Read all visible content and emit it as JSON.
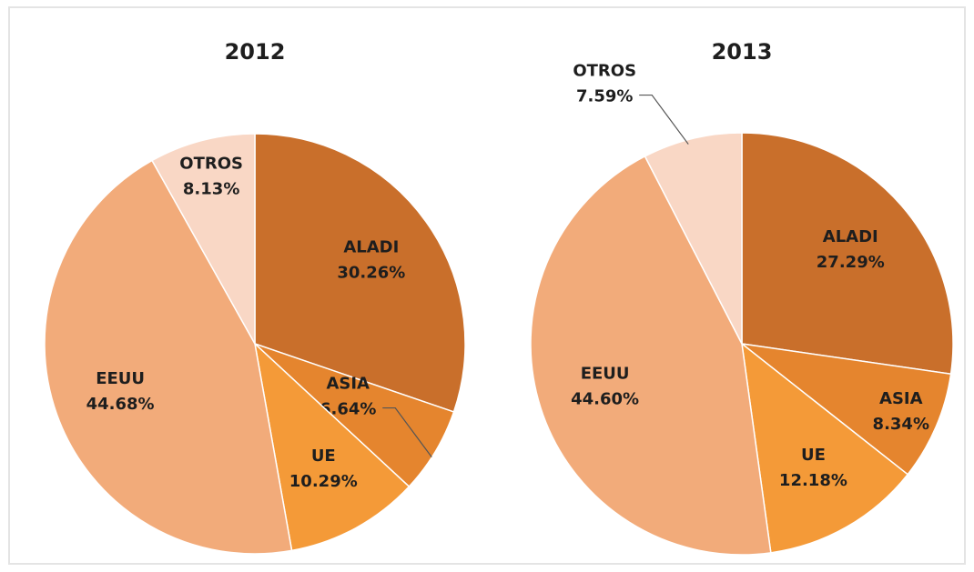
{
  "chart_data": [
    {
      "type": "pie",
      "title": "2012",
      "categories": [
        "ALADI",
        "ASIA",
        "UE",
        "EEUU",
        "OTROS"
      ],
      "values": [
        30.26,
        6.64,
        10.29,
        44.68,
        8.13
      ],
      "value_labels": [
        "30.26%",
        "6.64%",
        "10.29%",
        "44.68%",
        "8.13%"
      ],
      "colors": [
        "#c96f2b",
        "#e5852e",
        "#f49a38",
        "#f2ab7a",
        "#f9d7c5"
      ]
    },
    {
      "type": "pie",
      "title": "2013",
      "categories": [
        "ALADI",
        "ASIA",
        "UE",
        "EEUU",
        "OTROS"
      ],
      "values": [
        27.29,
        8.34,
        12.18,
        44.6,
        7.59
      ],
      "value_labels": [
        "27.29%",
        "8.34%",
        "12.18%",
        "44.60%",
        "7.59%"
      ],
      "colors": [
        "#c96f2b",
        "#e5852e",
        "#f49a38",
        "#f2ab7a",
        "#f9d7c5"
      ]
    }
  ]
}
